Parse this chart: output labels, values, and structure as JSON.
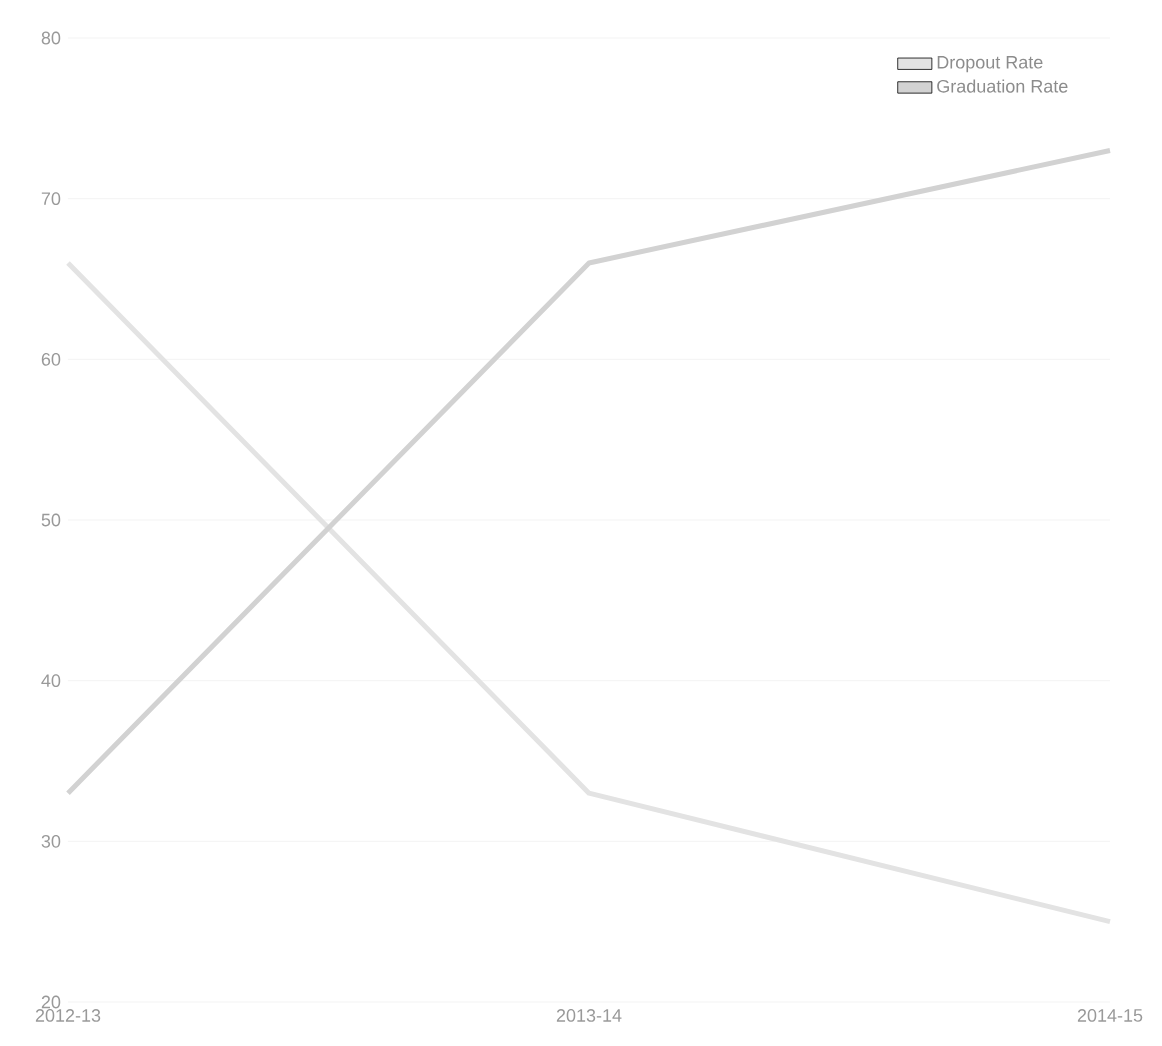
{
  "chart_data": {
    "type": "line",
    "categories": [
      "2012-13",
      "2013-14",
      "2014-15"
    ],
    "series": [
      {
        "name": "Dropout Rate",
        "color": "#e3e3e3",
        "values": [
          66,
          33,
          25
        ]
      },
      {
        "name": "Graduation Rate",
        "color": "#d2d2d2",
        "values": [
          33,
          66,
          73
        ]
      }
    ],
    "ylim": [
      20,
      80
    ],
    "yticks": [
      20,
      30,
      40,
      50,
      60,
      70,
      80
    ],
    "grid": "y",
    "legend": "top right"
  }
}
